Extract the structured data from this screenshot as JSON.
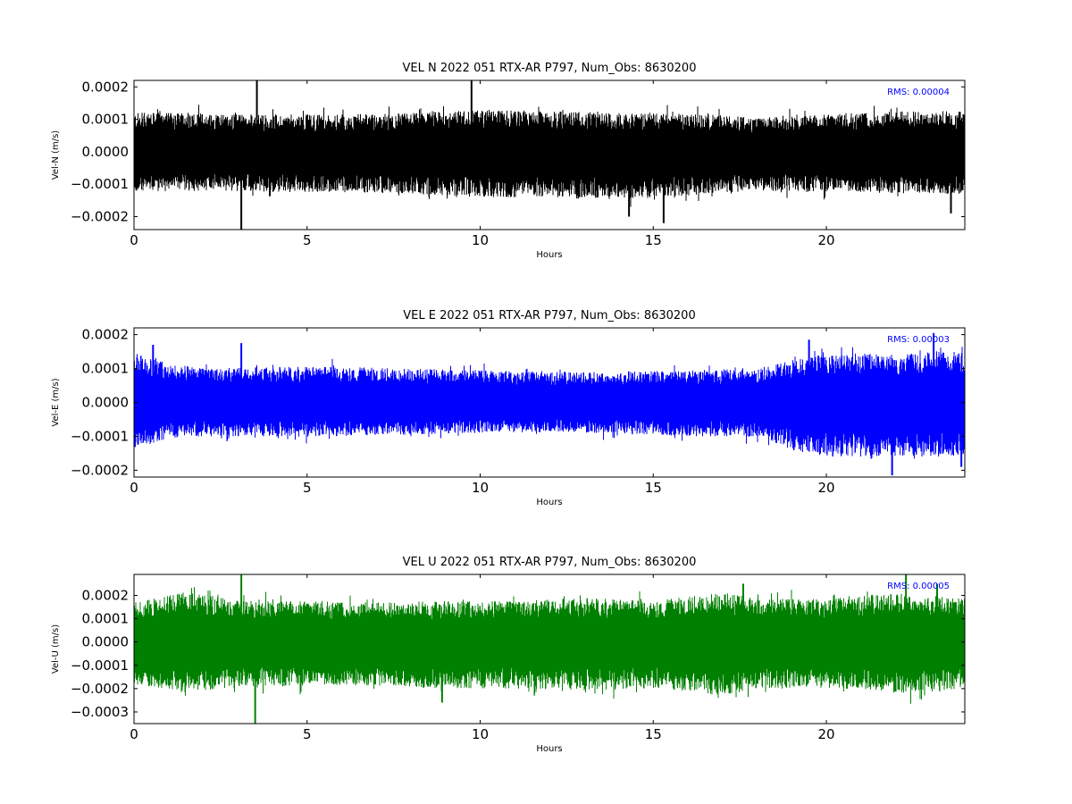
{
  "chart_data": [
    {
      "type": "line",
      "title": "VEL N 2022 051 RTX-AR  P797, Num_Obs: 8630200",
      "xlabel": "Hours",
      "ylabel": "Vel-N (m/s)",
      "xlim": [
        0,
        24
      ],
      "ylim": [
        -0.00024,
        0.00022
      ],
      "xticks": [
        "0",
        "5",
        "10",
        "15",
        "20"
      ],
      "yticks": [
        -0.0002,
        -0.0001,
        0.0,
        0.0001,
        0.0002
      ],
      "ytick_labels": [
        "−0.0002",
        "−0.0001",
        "0.0000",
        "0.0001",
        "0.0002"
      ],
      "color": "#000000",
      "rms_label": "RMS:  0.00004",
      "envelope": {
        "x": [
          0,
          2,
          4,
          6,
          8,
          10,
          12,
          14,
          16,
          18,
          20,
          22,
          24
        ],
        "upper": [
          0.00012,
          0.00012,
          0.000115,
          0.000115,
          0.00012,
          0.00013,
          0.000125,
          0.00012,
          0.00012,
          0.000105,
          0.000115,
          0.000125,
          0.000125
        ],
        "lower": [
          -0.000125,
          -0.00012,
          -0.000125,
          -0.000125,
          -0.00013,
          -0.00014,
          -0.00014,
          -0.000145,
          -0.000135,
          -0.00012,
          -0.000125,
          -0.00013,
          -0.00013
        ]
      },
      "spikes": [
        {
          "x": 3.1,
          "y": -0.00024
        },
        {
          "x": 3.55,
          "y": 0.00022
        },
        {
          "x": 9.75,
          "y": 0.00022
        },
        {
          "x": 14.3,
          "y": -0.0002
        },
        {
          "x": 15.3,
          "y": -0.00022
        },
        {
          "x": 23.6,
          "y": -0.00019
        }
      ]
    },
    {
      "type": "line",
      "title": "VEL E 2022 051 RTX-AR  P797, Num_Obs: 8630200",
      "xlabel": "Hours",
      "ylabel": "Vel-E (m/s)",
      "xlim": [
        0,
        24
      ],
      "ylim": [
        -0.00022,
        0.00022
      ],
      "xticks": [
        "0",
        "5",
        "10",
        "15",
        "20"
      ],
      "yticks": [
        -0.0002,
        -0.0001,
        0.0,
        0.0001,
        0.0002
      ],
      "ytick_labels": [
        "−0.0002",
        "−0.0001",
        "0.0000",
        "0.0001",
        "0.0002"
      ],
      "color": "#0000ff",
      "rms_label": "RMS:  0.00003",
      "envelope": {
        "x": [
          0,
          1,
          2,
          4,
          6,
          8,
          10,
          12,
          14,
          16,
          18,
          19,
          20,
          22,
          24
        ],
        "upper": [
          0.000145,
          0.000115,
          0.0001,
          0.000105,
          0.000105,
          0.0001,
          9.5e-05,
          9e-05,
          9e-05,
          9.5e-05,
          0.0001,
          0.000125,
          0.000145,
          0.000145,
          0.00015
        ],
        "lower": [
          -0.00014,
          -0.000105,
          -0.0001,
          -0.0001,
          -0.0001,
          -9.5e-05,
          -9e-05,
          -9e-05,
          -9e-05,
          -0.0001,
          -0.0001,
          -0.00014,
          -0.00016,
          -0.00016,
          -0.00016
        ]
      },
      "spikes": [
        {
          "x": 0.55,
          "y": 0.00017
        },
        {
          "x": 3.1,
          "y": 0.000175
        },
        {
          "x": 19.5,
          "y": 0.000185
        },
        {
          "x": 21.9,
          "y": -0.000215
        },
        {
          "x": 23.1,
          "y": 0.000205
        },
        {
          "x": 23.9,
          "y": -0.00019
        }
      ]
    },
    {
      "type": "line",
      "title": "VEL U 2022 051 RTX-AR  P797, Num_Obs: 8630200",
      "xlabel": "Hours",
      "ylabel": "Vel-U (m/s)",
      "xlim": [
        0,
        24
      ],
      "ylim": [
        -0.00035,
        0.00029
      ],
      "xticks": [
        "0",
        "5",
        "10",
        "15",
        "20"
      ],
      "yticks": [
        -0.0003,
        -0.0002,
        -0.0001,
        0.0,
        0.0001,
        0.0002
      ],
      "ytick_labels": [
        "−0.0003",
        "−0.0002",
        "−0.0001",
        "0.0000",
        "0.0001",
        "0.0002"
      ],
      "color": "#008000",
      "rms_label": "RMS:  0.00005",
      "envelope": {
        "x": [
          0,
          1.5,
          3,
          5,
          7,
          9,
          11,
          13,
          15,
          17,
          18,
          20,
          22,
          24
        ],
        "upper": [
          0.00017,
          0.000215,
          0.00018,
          0.000175,
          0.00017,
          0.000175,
          0.000175,
          0.00019,
          0.000175,
          0.000215,
          0.000185,
          0.000185,
          0.00021,
          0.000185
        ],
        "lower": [
          -0.00018,
          -0.00022,
          -0.00019,
          -0.00019,
          -0.00019,
          -0.0002,
          -0.0002,
          -0.000205,
          -0.0002,
          -0.00023,
          -0.0002,
          -0.0002,
          -0.00022,
          -0.0002
        ]
      },
      "spikes": [
        {
          "x": 3.1,
          "y": 0.00029
        },
        {
          "x": 3.5,
          "y": -0.00035
        },
        {
          "x": 8.9,
          "y": -0.00026
        },
        {
          "x": 17.6,
          "y": 0.00025
        },
        {
          "x": 22.3,
          "y": 0.00029
        },
        {
          "x": 23.2,
          "y": 0.00025
        }
      ]
    }
  ]
}
